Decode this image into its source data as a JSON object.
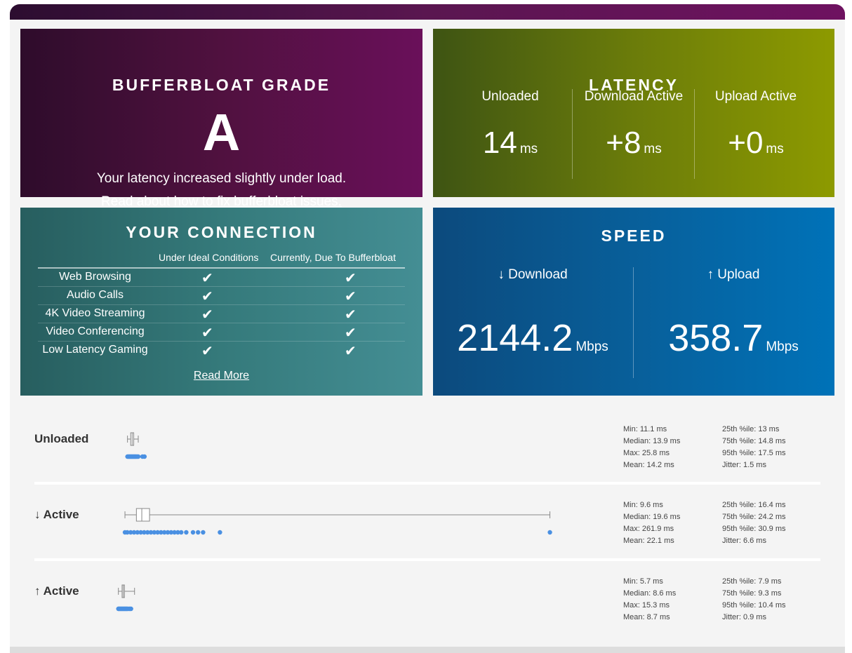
{
  "grade": {
    "title": "BUFFERBLOAT GRADE",
    "letter": "A",
    "message": "Your latency increased slightly under load.",
    "read_prefix": "Read about ",
    "read_link": "how to fix bufferbloat issues."
  },
  "latency": {
    "title": "LATENCY",
    "unit": "ms",
    "cols": [
      {
        "label": "Unloaded",
        "value": "14"
      },
      {
        "label": "Download Active",
        "value": "+8"
      },
      {
        "label": "Upload Active",
        "value": "+0"
      }
    ]
  },
  "connection": {
    "title": "YOUR CONNECTION",
    "col_ideal": "Under Ideal Conditions",
    "col_current": "Currently, Due To Bufferbloat",
    "check": "✔",
    "rows": [
      {
        "name": "Web Browsing"
      },
      {
        "name": "Audio Calls"
      },
      {
        "name": "4K Video Streaming"
      },
      {
        "name": "Video Conferencing"
      },
      {
        "name": "Low Latency Gaming"
      }
    ],
    "read_more": "Read More"
  },
  "speed": {
    "title": "SPEED",
    "unit": "Mbps",
    "download": {
      "label": "↓ Download",
      "value": "2144.2"
    },
    "upload": {
      "label": "↑ Upload",
      "value": "358.7"
    }
  },
  "rows": [
    {
      "label": "Unloaded",
      "stats_a": {
        "min": "Min: 11.1 ms",
        "median": "Median: 13.9 ms",
        "max": "Max: 25.8 ms",
        "mean": "Mean: 14.2 ms"
      },
      "stats_b": {
        "p25": "25th %ile: 13 ms",
        "p75": "75th %ile: 14.8 ms",
        "p95": "95th %ile: 17.5 ms",
        "jitter": "Jitter: 1.5 ms"
      },
      "box": {
        "min": 11.1,
        "q1": 13,
        "median": 13.9,
        "q3": 14.8,
        "whisker_high": 17.5
      },
      "outliers": [
        11.1,
        11.6,
        12.0,
        12.4,
        12.8,
        13.2,
        13.6,
        14.0,
        14.4,
        14.8,
        15.2,
        15.6,
        16.0,
        16.4,
        17.0,
        17.5,
        20.0,
        21.2
      ]
    },
    {
      "label": "↓ Active",
      "stats_a": {
        "min": "Min: 9.6 ms",
        "median": "Median: 19.6 ms",
        "max": "Max: 261.9 ms",
        "mean": "Mean: 22.1 ms"
      },
      "stats_b": {
        "p25": "25th %ile: 16.4 ms",
        "p75": "75th %ile: 24.2 ms",
        "p95": "95th %ile: 30.9 ms",
        "jitter": "Jitter: 6.6 ms"
      },
      "box": {
        "min": 9.6,
        "q1": 16.4,
        "median": 19.6,
        "q3": 24.2,
        "whisker_high": 261.9
      },
      "outliers": [
        9.6,
        11,
        13,
        15,
        17,
        19,
        21,
        23,
        25,
        27,
        29,
        31,
        33,
        35,
        37,
        39,
        41,
        43,
        46,
        50,
        53,
        56,
        66,
        261.9
      ]
    },
    {
      "label": "↑ Active",
      "stats_a": {
        "min": "Min: 5.7 ms",
        "median": "Median: 8.6 ms",
        "max": "Max: 15.3 ms",
        "mean": "Mean: 8.7 ms"
      },
      "stats_b": {
        "p25": "25th %ile: 7.9 ms",
        "p75": "75th %ile: 9.3 ms",
        "p95": "95th %ile: 10.4 ms",
        "jitter": "Jitter: 0.9 ms"
      },
      "box": {
        "min": 5.7,
        "q1": 7.9,
        "median": 8.6,
        "q3": 9.3,
        "whisker_high": 15.3
      },
      "outliers": [
        5.7,
        6.0,
        6.4,
        6.8,
        7.2,
        7.6,
        8.0,
        8.4,
        8.8,
        9.2,
        9.6,
        10.0,
        10.4,
        10.8,
        11.2,
        12.0,
        12.6,
        13.2
      ]
    }
  ],
  "colors": {
    "dot": "#4a90e2",
    "box": "#888888"
  }
}
